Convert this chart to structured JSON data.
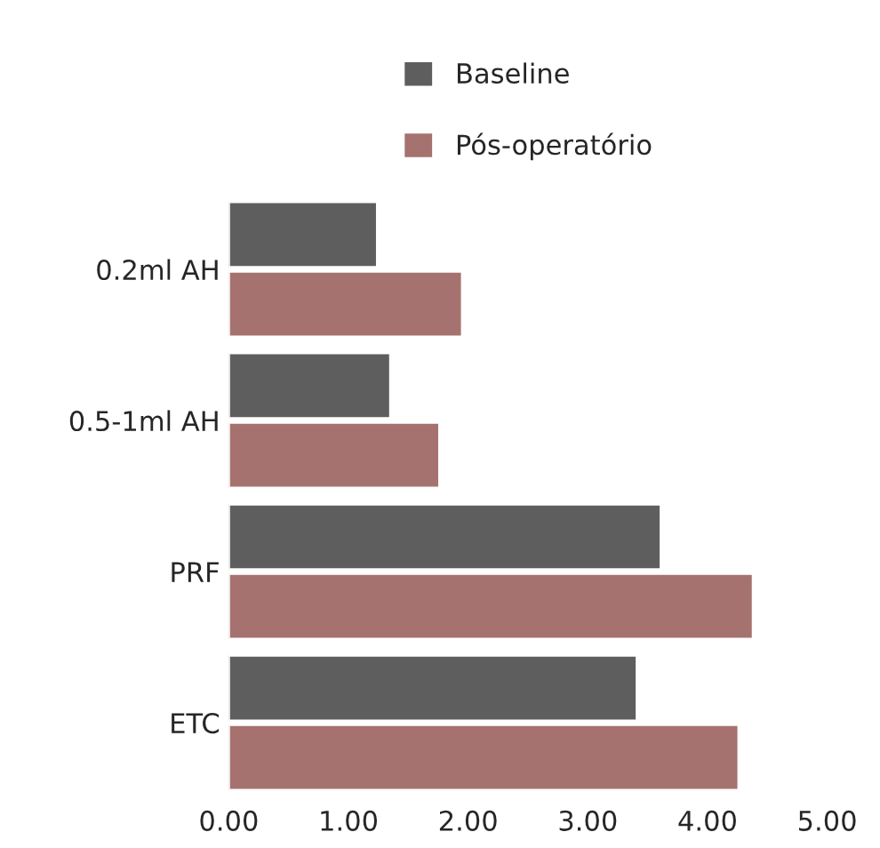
{
  "chart_data": {
    "type": "bar",
    "orientation": "horizontal",
    "categories": [
      "0.2ml AH",
      "0.5-1ml AH",
      "PRF",
      "ETC"
    ],
    "series": [
      {
        "name": "Baseline",
        "color": "#5e5e5e",
        "values": [
          1.24,
          1.35,
          3.61,
          3.41
        ]
      },
      {
        "name": "Pós-operatório",
        "color": "#a5726f",
        "values": [
          1.95,
          1.76,
          4.38,
          4.26
        ]
      }
    ],
    "xlim": [
      0,
      5
    ],
    "xticks": [
      {
        "value": 0,
        "label": "0.00"
      },
      {
        "value": 1,
        "label": "1.00"
      },
      {
        "value": 2,
        "label": "2.00"
      },
      {
        "value": 3,
        "label": "3.00"
      },
      {
        "value": 4,
        "label": "4.00"
      },
      {
        "value": 5,
        "label": "5.00"
      }
    ],
    "legend": "top",
    "grid": false
  }
}
